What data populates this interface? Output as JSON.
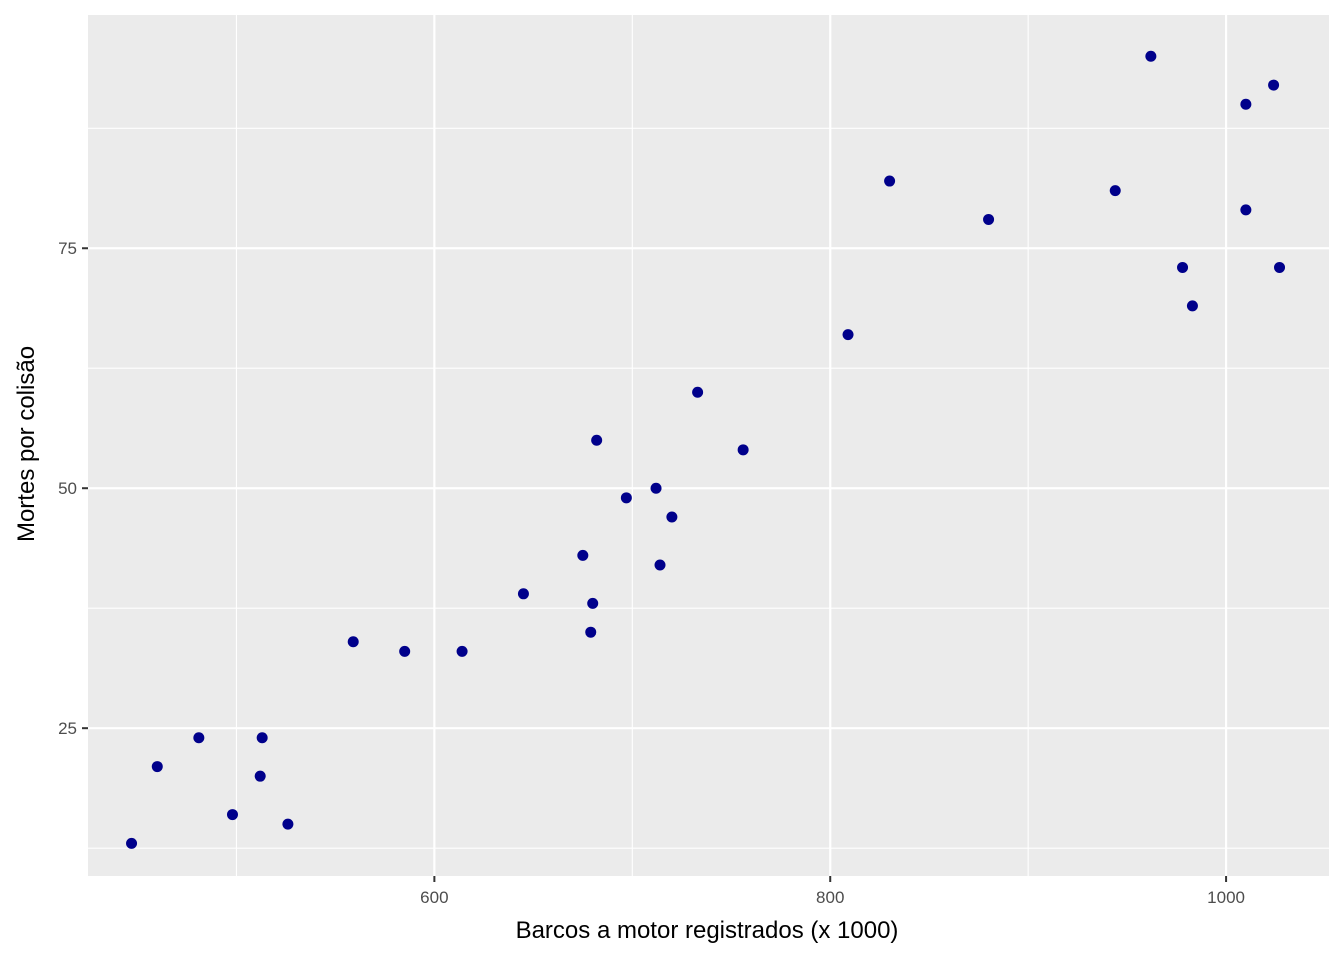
{
  "chart_data": {
    "type": "scatter",
    "title": "",
    "xlabel": "Barcos a motor registrados (x 1000)",
    "ylabel": "Mortes por colisão",
    "xlim": [
      425,
      1052
    ],
    "ylim": [
      9.6,
      99.3
    ],
    "x_ticks": [
      600,
      800,
      1000
    ],
    "x_tick_labels": [
      "600",
      "800",
      "1000"
    ],
    "x_minor_ticks": [
      500,
      700,
      900
    ],
    "y_ticks": [
      25,
      50,
      75
    ],
    "y_tick_labels": [
      "25",
      "50",
      "75"
    ],
    "y_minor_ticks": [
      12.5,
      37.5,
      62.5,
      87.5
    ],
    "grid": true,
    "legend": "none",
    "colors": {
      "panel": "#ebebeb",
      "grid": "#ffffff",
      "point": "#00008b",
      "tick": "#333333"
    },
    "points": [
      {
        "x": 447,
        "y": 13
      },
      {
        "x": 460,
        "y": 21
      },
      {
        "x": 481,
        "y": 24
      },
      {
        "x": 498,
        "y": 16
      },
      {
        "x": 512,
        "y": 20
      },
      {
        "x": 513,
        "y": 24
      },
      {
        "x": 526,
        "y": 15
      },
      {
        "x": 559,
        "y": 34
      },
      {
        "x": 585,
        "y": 33
      },
      {
        "x": 614,
        "y": 33
      },
      {
        "x": 645,
        "y": 39
      },
      {
        "x": 675,
        "y": 43
      },
      {
        "x": 679,
        "y": 35
      },
      {
        "x": 680,
        "y": 38
      },
      {
        "x": 682,
        "y": 55
      },
      {
        "x": 697,
        "y": 49
      },
      {
        "x": 712,
        "y": 50
      },
      {
        "x": 714,
        "y": 42
      },
      {
        "x": 720,
        "y": 47
      },
      {
        "x": 733,
        "y": 60
      },
      {
        "x": 756,
        "y": 54
      },
      {
        "x": 809,
        "y": 66
      },
      {
        "x": 830,
        "y": 82
      },
      {
        "x": 880,
        "y": 78
      },
      {
        "x": 944,
        "y": 81
      },
      {
        "x": 962,
        "y": 95
      },
      {
        "x": 978,
        "y": 73
      },
      {
        "x": 983,
        "y": 69
      },
      {
        "x": 1010,
        "y": 79
      },
      {
        "x": 1010,
        "y": 90
      },
      {
        "x": 1024,
        "y": 92
      },
      {
        "x": 1027,
        "y": 73
      }
    ]
  }
}
